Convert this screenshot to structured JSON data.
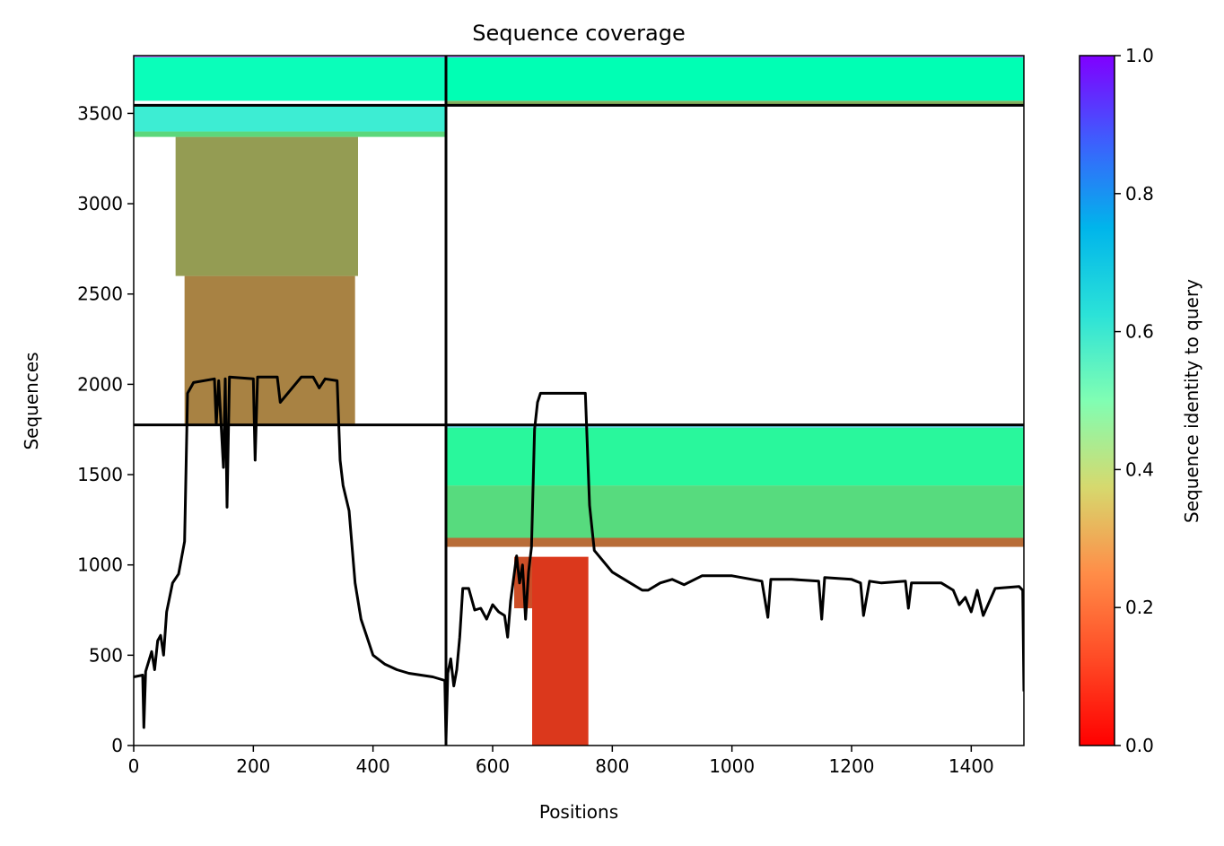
{
  "chart_data": {
    "type": "heatmap",
    "title": "Sequence coverage",
    "xlabel": "Positions",
    "ylabel": "Sequences",
    "xlim": [
      0,
      1488
    ],
    "ylim": [
      0,
      3820
    ],
    "x_ticks": [
      0,
      200,
      400,
      600,
      800,
      1000,
      1200,
      1400
    ],
    "y_ticks": [
      0,
      500,
      1000,
      1500,
      2000,
      2500,
      3000,
      3500
    ],
    "grid": false,
    "colorbar": {
      "label": "Sequence identity to query",
      "colormap": "rainbow_r",
      "range": [
        0,
        1
      ],
      "ticks": [
        "0.0",
        "0.2",
        "0.4",
        "0.6",
        "0.8",
        "1.0"
      ]
    },
    "segment_boundaries": {
      "x_positions": [
        522
      ],
      "y_positions": [
        1775,
        3545
      ]
    },
    "coverage_blocks": [
      {
        "x": [
          666,
          760
        ],
        "y": [
          0,
          1045
        ],
        "identity": 0.07
      },
      {
        "x": [
          636,
          666
        ],
        "y": [
          760,
          1045
        ],
        "identity": 0.1
      },
      {
        "x": [
          522,
          1488
        ],
        "y": [
          1100,
          1150
        ],
        "identity": 0.14
      },
      {
        "x": [
          522,
          1488
        ],
        "y": [
          1150,
          1440
        ],
        "identity": 0.33
      },
      {
        "x": [
          522,
          1488
        ],
        "y": [
          1440,
          1760
        ],
        "identity": 0.42
      },
      {
        "x": [
          522,
          1488
        ],
        "y": [
          1760,
          1775
        ],
        "identity": 0.7
      },
      {
        "x": [
          85,
          370
        ],
        "y": [
          1775,
          2600
        ],
        "identity": 0.17
      },
      {
        "x": [
          70,
          375
        ],
        "y": [
          2600,
          3370
        ],
        "identity": 0.21
      },
      {
        "x": [
          0,
          522
        ],
        "y": [
          3370,
          3400
        ],
        "identity": 0.32
      },
      {
        "x": [
          0,
          522
        ],
        "y": [
          3400,
          3545
        ],
        "identity": 0.62
      },
      {
        "x": [
          522,
          1488
        ],
        "y": [
          3545,
          3570
        ],
        "identity": 0.24
      },
      {
        "x": [
          522,
          1488
        ],
        "y": [
          3570,
          3810
        ],
        "identity": 0.5
      },
      {
        "x": [
          0,
          522
        ],
        "y": [
          3570,
          3810
        ],
        "identity": 0.52
      },
      {
        "x": [
          0,
          1488
        ],
        "y": [
          3810,
          3820
        ],
        "identity": 0.85
      }
    ],
    "coverage_line": {
      "x": [
        0,
        15,
        17,
        20,
        30,
        35,
        40,
        45,
        50,
        55,
        65,
        75,
        85,
        90,
        100,
        135,
        138,
        142,
        150,
        153,
        156,
        160,
        200,
        203,
        207,
        240,
        245,
        280,
        300,
        310,
        320,
        340,
        345,
        350,
        360,
        370,
        380,
        390,
        400,
        420,
        440,
        460,
        500,
        520,
        522,
        525,
        530,
        535,
        540,
        545,
        550,
        560,
        570,
        580,
        590,
        600,
        610,
        620,
        625,
        630,
        640,
        645,
        650,
        655,
        660,
        665,
        670,
        675,
        680,
        690,
        700,
        720,
        740,
        755,
        762,
        770,
        800,
        820,
        830,
        850,
        860,
        880,
        900,
        920,
        950,
        1000,
        1050,
        1060,
        1065,
        1100,
        1145,
        1150,
        1155,
        1200,
        1215,
        1220,
        1230,
        1250,
        1290,
        1295,
        1300,
        1350,
        1370,
        1380,
        1390,
        1400,
        1410,
        1420,
        1440,
        1480,
        1486,
        1488
      ],
      "y": [
        380,
        390,
        100,
        410,
        520,
        420,
        580,
        610,
        500,
        740,
        900,
        950,
        1130,
        1950,
        2010,
        2030,
        1780,
        2020,
        1540,
        2030,
        1320,
        2040,
        2030,
        1580,
        2040,
        2040,
        1900,
        2040,
        2040,
        1980,
        2030,
        2020,
        1580,
        1440,
        1300,
        900,
        700,
        600,
        500,
        450,
        420,
        400,
        380,
        360,
        30,
        400,
        480,
        330,
        420,
        600,
        870,
        870,
        750,
        760,
        700,
        780,
        740,
        720,
        600,
        800,
        1050,
        900,
        1000,
        700,
        960,
        1100,
        1750,
        1900,
        1950,
        1950,
        1950,
        1950,
        1950,
        1950,
        1330,
        1080,
        960,
        920,
        900,
        860,
        860,
        900,
        920,
        890,
        940,
        940,
        910,
        710,
        920,
        920,
        910,
        700,
        930,
        920,
        900,
        720,
        910,
        900,
        910,
        760,
        900,
        900,
        860,
        780,
        820,
        740,
        860,
        720,
        870,
        880,
        860,
        300,
        300
      ]
    }
  }
}
